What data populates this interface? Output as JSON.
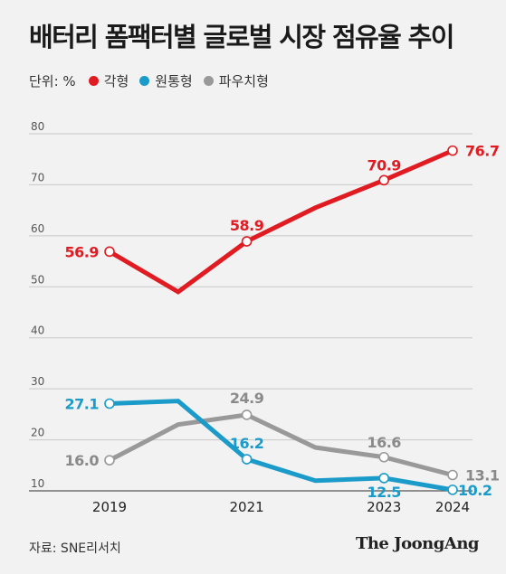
{
  "title": "배터리 폼팩터별 글로벌 시장 점유율 추이",
  "legend": {
    "unit": "단위: %",
    "items": [
      {
        "name": "각형",
        "color": "#e11b22"
      },
      {
        "name": "원통형",
        "color": "#1a9bc9"
      },
      {
        "name": "파우치형",
        "color": "#999999"
      }
    ]
  },
  "source": "자료: SNE리서치",
  "logo": "The JoongAng",
  "chart_data": {
    "type": "line",
    "x": [
      2019,
      2020,
      2021,
      2022,
      2023,
      2024
    ],
    "x_tick_labels": [
      "2019",
      "2021",
      "2023",
      "2024"
    ],
    "x_ticks": [
      2019,
      2021,
      2023,
      2024
    ],
    "ylim": [
      10,
      80
    ],
    "y_ticks": [
      10,
      20,
      30,
      40,
      50,
      60,
      70,
      80
    ],
    "series": [
      {
        "name": "각형",
        "color": "#e11b22",
        "values": [
          56.9,
          49.0,
          58.9,
          65.5,
          70.9,
          76.7
        ],
        "labels": [
          "56.9",
          null,
          "58.9",
          null,
          "70.9",
          "76.7"
        ]
      },
      {
        "name": "원통형",
        "color": "#1a9bc9",
        "values": [
          27.1,
          27.6,
          16.2,
          12.0,
          12.5,
          10.2
        ],
        "labels": [
          "27.1",
          null,
          "16.2",
          null,
          "12.5",
          "10.2"
        ]
      },
      {
        "name": "파우치형",
        "color": "#999999",
        "values": [
          16.0,
          23.0,
          24.9,
          18.5,
          16.6,
          13.1
        ],
        "labels": [
          "16.0",
          null,
          "24.9",
          null,
          "16.6",
          "13.1"
        ]
      }
    ]
  }
}
